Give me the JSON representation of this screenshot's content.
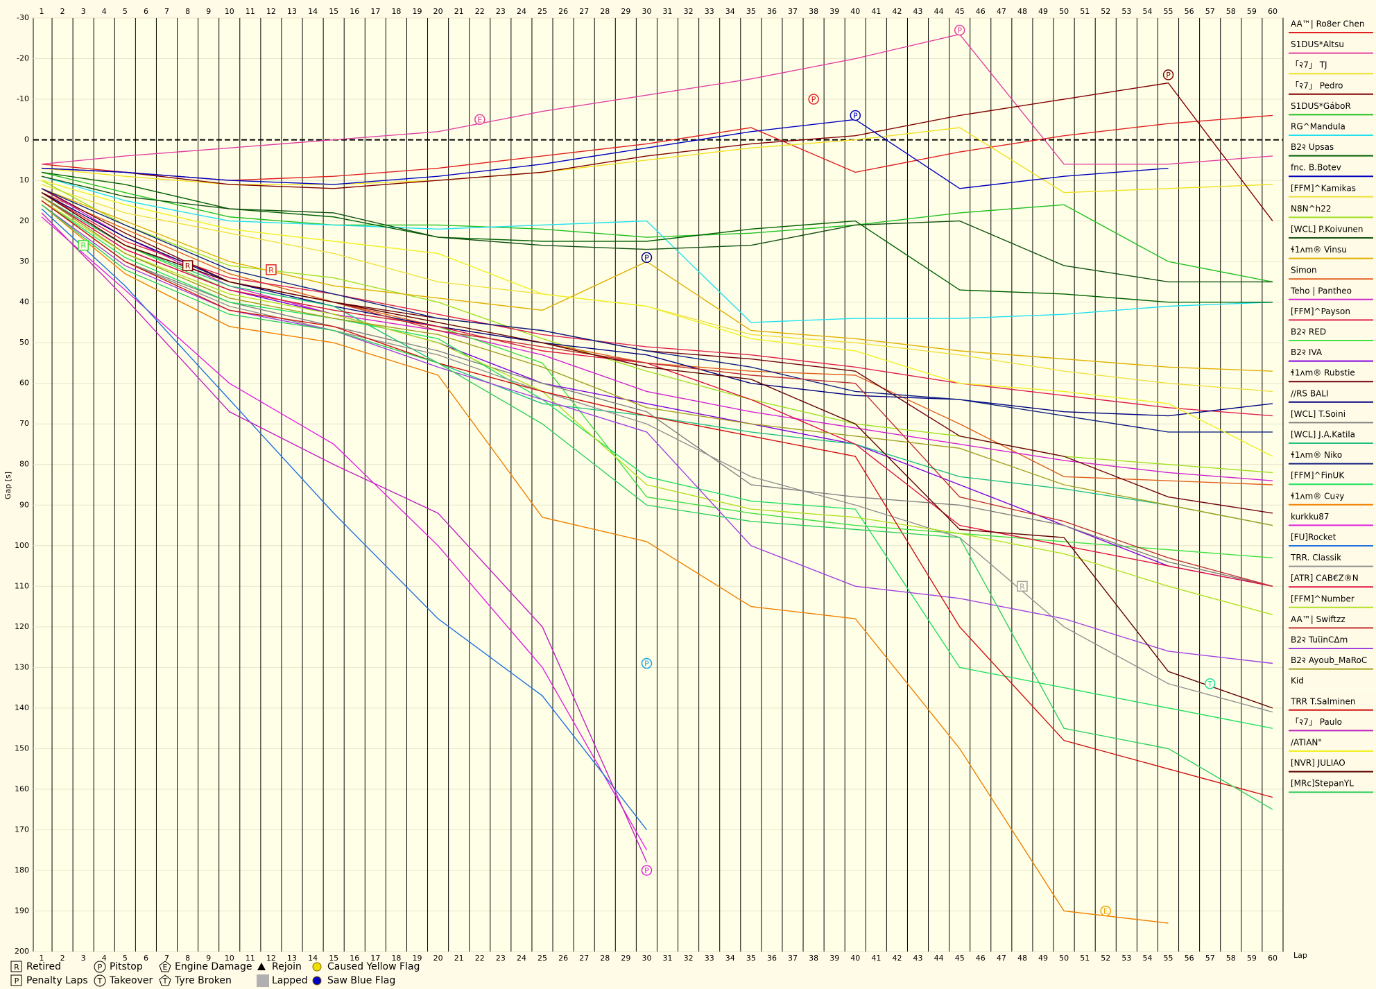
{
  "chart_data": {
    "type": "line",
    "x_label": "Lap",
    "y_label": "Gap [s]",
    "x": [
      1,
      5,
      10,
      15,
      20,
      25,
      30,
      35,
      40,
      45,
      50,
      55,
      60
    ],
    "xlim": [
      0.6,
      60.5
    ],
    "xticks": [
      1,
      2,
      3,
      4,
      5,
      6,
      7,
      8,
      9,
      10,
      11,
      12,
      13,
      14,
      15,
      16,
      17,
      18,
      19,
      20,
      21,
      22,
      23,
      24,
      25,
      26,
      27,
      28,
      29,
      30,
      31,
      32,
      33,
      34,
      35,
      36,
      37,
      38,
      39,
      40,
      41,
      42,
      43,
      44,
      45,
      46,
      47,
      48,
      49,
      50,
      51,
      52,
      53,
      54,
      55,
      56,
      57,
      58,
      59,
      60
    ],
    "ylim": [
      200,
      -30
    ],
    "yticks": [
      -30,
      -20,
      -10,
      0,
      10,
      20,
      30,
      40,
      50,
      60,
      70,
      80,
      90,
      100,
      110,
      120,
      130,
      140,
      150,
      160,
      170,
      180,
      190,
      200
    ],
    "grid": true,
    "series": [
      {
        "name": "AA™| Ro8er Chen",
        "color": "#e02020",
        "values": [
          6,
          8,
          10,
          9,
          7,
          4,
          1,
          -3,
          8,
          3,
          -1,
          -4,
          -6
        ]
      },
      {
        "name": "S1DUS*Altsu",
        "color": "#e040a0",
        "values": [
          6,
          4,
          2,
          0,
          -2,
          -7,
          -11,
          -15,
          -20,
          -26,
          6,
          6,
          4
        ]
      },
      {
        "name": "「२7」 TJ",
        "color": "#f0e020",
        "values": [
          7,
          9,
          11,
          11,
          10,
          8,
          5,
          2,
          0,
          -3,
          13,
          12,
          11
        ]
      },
      {
        "name": "「२7」 Pedro",
        "color": "#800000",
        "values": [
          7,
          8,
          11,
          12,
          10,
          8,
          4,
          1,
          -1,
          -6,
          -10,
          -14,
          20
        ]
      },
      {
        "name": "S1DUS*GáboR",
        "color": "#20c020",
        "values": [
          8,
          13,
          19,
          21,
          21,
          22,
          24,
          23,
          21,
          18,
          16,
          30,
          35
        ]
      },
      {
        "name": "RG^Mandula",
        "color": "#20e0f0",
        "values": [
          9,
          15,
          20,
          21,
          22,
          21,
          20,
          45,
          44,
          44,
          43,
          41,
          40
        ]
      },
      {
        "name": "B2२ Upsas",
        "color": "#006000",
        "values": [
          8,
          11,
          17,
          19,
          24,
          25,
          25,
          22,
          20,
          37,
          38,
          40,
          40
        ]
      },
      {
        "name": "fnc. B.Botev",
        "color": "#0000c0",
        "values": [
          7,
          8,
          10,
          11,
          9,
          6,
          2,
          -2,
          -5,
          12,
          9,
          7,
          null
        ]
      },
      {
        "name": "[FFM]^Kamikas",
        "color": "#f0e040",
        "values": [
          11,
          18,
          23,
          28,
          35,
          38,
          41,
          48,
          50,
          53,
          57,
          60,
          62
        ]
      },
      {
        "name": "N8N^h22",
        "color": "#a0e020",
        "values": [
          10,
          21,
          31,
          34,
          40,
          49,
          57,
          64,
          70,
          73,
          78,
          80,
          82
        ]
      },
      {
        "name": "[WCL] P.Koivunen",
        "color": "#105010",
        "values": [
          9,
          14,
          17,
          18,
          24,
          26,
          27,
          26,
          21,
          20,
          31,
          35,
          35
        ]
      },
      {
        "name": "ɬ1ʌm® Vinsu",
        "color": "#e0b000",
        "values": [
          12,
          20,
          30,
          36,
          39,
          42,
          30,
          47,
          49,
          52,
          54,
          56,
          57
        ]
      },
      {
        "name": "Simon",
        "color": "#e06020",
        "values": [
          13,
          22,
          33,
          40,
          46,
          50,
          55,
          57,
          58,
          70,
          83,
          84,
          85
        ]
      },
      {
        "name": "Teho | Pantheo",
        "color": "#d020d0",
        "values": [
          12,
          24,
          36,
          43,
          47,
          53,
          62,
          67,
          71,
          75,
          79,
          82,
          84
        ]
      },
      {
        "name": "[FFM]^Payson",
        "color": "#e02050",
        "values": [
          13,
          25,
          34,
          38,
          43,
          48,
          51,
          53,
          56,
          60,
          63,
          66,
          68
        ]
      },
      {
        "name": "B2२ RED",
        "color": "#40e040",
        "values": [
          14,
          26,
          37,
          42,
          46,
          55,
          88,
          92,
          95,
          97,
          99,
          101,
          103
        ]
      },
      {
        "name": "B2२ IVA",
        "color": "#8000e0",
        "values": [
          14,
          27,
          37,
          43,
          50,
          60,
          65,
          70,
          75,
          85,
          95,
          105,
          110
        ]
      },
      {
        "name": "ɬ1ʌm® Rubstie",
        "color": "#700010",
        "values": [
          12,
          23,
          35,
          40,
          44,
          47,
          52,
          54,
          57,
          73,
          78,
          88,
          92
        ]
      },
      {
        "name": "//RS BALI",
        "color": "#000080",
        "values": [
          13,
          24,
          35,
          41,
          46,
          50,
          53,
          60,
          63,
          64,
          67,
          68,
          65
        ]
      },
      {
        "name": "[WCL] T.Soini",
        "color": "#808080",
        "values": [
          15,
          30,
          40,
          46,
          52,
          60,
          67,
          85,
          88,
          90,
          95,
          104,
          110
        ]
      },
      {
        "name": "[WCL] J.A.Katila",
        "color": "#20c080",
        "values": [
          14,
          26,
          36,
          41,
          55,
          65,
          68,
          72,
          75,
          83,
          86,
          90,
          95
        ]
      },
      {
        "name": "ɬ1ʌm® Niko",
        "color": "#102080",
        "values": [
          12,
          21,
          32,
          38,
          44,
          47,
          52,
          56,
          62,
          64,
          68,
          72,
          72
        ]
      },
      {
        "name": "[FFM]^FinUK",
        "color": "#20e060",
        "values": [
          15,
          29,
          40,
          44,
          49,
          64,
          83,
          89,
          91,
          130,
          135,
          140,
          145
        ]
      },
      {
        "name": "ɬ1ʌm® Cu२y",
        "color": "#f08000",
        "values": [
          16,
          33,
          46,
          50,
          58,
          93,
          99,
          115,
          118,
          150,
          190,
          193,
          null
        ]
      },
      {
        "name": "kurkku87",
        "color": "#e020e0",
        "values": [
          19,
          37,
          60,
          75,
          100,
          130,
          175,
          null,
          null,
          null,
          null,
          null,
          null
        ]
      },
      {
        "name": "[FU]Rocket",
        "color": "#2070e0",
        "values": [
          17,
          36,
          64,
          92,
          118,
          137,
          170,
          null,
          null,
          null,
          null,
          null,
          null
        ]
      },
      {
        "name": "TRR. Classik",
        "color": "#909090",
        "values": [
          15,
          30,
          41,
          47,
          53,
          62,
          70,
          83,
          90,
          98,
          120,
          134,
          141
        ]
      },
      {
        "name": "[ATR] CAB€Z®N",
        "color": "#e01040",
        "values": [
          14,
          27,
          37,
          42,
          46,
          52,
          55,
          64,
          75,
          95,
          100,
          105,
          110
        ]
      },
      {
        "name": "[FFM]^Number",
        "color": "#b0e020",
        "values": [
          15,
          28,
          38,
          43,
          50,
          62,
          85,
          91,
          93,
          97,
          102,
          110,
          117
        ]
      },
      {
        "name": "AA™| Swiftzz",
        "color": "#c03030",
        "values": [
          13,
          26,
          35,
          40,
          47,
          51,
          55,
          58,
          60,
          88,
          94,
          103,
          110
        ]
      },
      {
        "name": "B2२ TuϊinCΔm",
        "color": "#a040e0",
        "values": [
          16,
          31,
          42,
          47,
          56,
          64,
          72,
          100,
          110,
          113,
          118,
          126,
          129
        ]
      },
      {
        "name": "B2२ Ayoub_MaRoC",
        "color": "#a0a020",
        "values": [
          14,
          28,
          39,
          44,
          48,
          56,
          66,
          70,
          73,
          76,
          85,
          90,
          95
        ]
      },
      {
        "name": "Kid",
        "color": "#fffff0",
        "values": [
          null,
          null,
          null,
          null,
          null,
          null,
          null,
          null,
          null,
          null,
          null,
          null,
          null
        ]
      },
      {
        "name": "TRR T.Salminen",
        "color": "#d01010",
        "values": [
          15,
          30,
          42,
          46,
          55,
          62,
          68,
          73,
          78,
          120,
          148,
          155,
          162
        ]
      },
      {
        "name": "「२7」 Paulo",
        "color": "#c020c0",
        "values": [
          18,
          39,
          67,
          80,
          92,
          120,
          178,
          null,
          null,
          null,
          null,
          null,
          null
        ]
      },
      {
        "name": "/ATIAN\"",
        "color": "#f0f020",
        "values": [
          10,
          16,
          22,
          25,
          28,
          38,
          41,
          49,
          52,
          60,
          62,
          65,
          78
        ]
      },
      {
        "name": "[NVR] JULIAO",
        "color": "#600000",
        "values": [
          13,
          26,
          35,
          40,
          45,
          50,
          56,
          59,
          70,
          96,
          98,
          131,
          140
        ]
      },
      {
        "name": "[MRc]StepanYL",
        "color": "#30d060",
        "values": [
          16,
          32,
          43,
          47,
          55,
          70,
          90,
          94,
          96,
          98,
          145,
          150,
          165
        ]
      }
    ],
    "events": [
      {
        "label": "P",
        "x": 45,
        "y": -27,
        "color": "#e040a0"
      },
      {
        "label": "P",
        "x": 55,
        "y": -16,
        "color": "#800000"
      },
      {
        "label": "P",
        "x": 38,
        "y": -10,
        "color": "#e02020"
      },
      {
        "label": "P",
        "x": 40,
        "y": -6,
        "color": "#0000c0"
      },
      {
        "label": "R",
        "x": 3,
        "y": 26,
        "color": "#40e040"
      },
      {
        "label": "R",
        "x": 8,
        "y": 31,
        "color": "#800000"
      },
      {
        "label": "R",
        "x": 12,
        "y": 32,
        "color": "#e02020"
      },
      {
        "label": "E",
        "x": 22,
        "y": -5,
        "color": "#e040a0"
      },
      {
        "label": "P",
        "x": 30,
        "y": 29,
        "color": "#000080"
      },
      {
        "label": "P",
        "x": 30,
        "y": 129,
        "color": "#20a0e0"
      },
      {
        "label": "P",
        "x": 30,
        "y": 180,
        "color": "#e020e0"
      },
      {
        "label": "R",
        "x": 48,
        "y": 110,
        "color": "#a0a0a0"
      },
      {
        "label": "E",
        "x": 52,
        "y": 190,
        "color": "#f0a000"
      },
      {
        "label": "T",
        "x": 57,
        "y": 134,
        "color": "#20e0a0"
      }
    ],
    "legend_items": [
      {
        "symbol": "R",
        "label": "Retired",
        "shape": "box",
        "color": "#000000"
      },
      {
        "symbol": "P",
        "label": "Pitstop",
        "shape": "circle",
        "color": "#000000"
      },
      {
        "symbol": "E",
        "label": "Engine Damage",
        "shape": "pentagon",
        "color": "#000000"
      },
      {
        "label": "Rejoin",
        "shape": "triangle",
        "color": "#000000"
      },
      {
        "label": "Caused Yellow Flag",
        "shape": "dot",
        "color": "#f0e000"
      },
      {
        "symbol": "P",
        "label": "Penalty Laps",
        "shape": "box",
        "color": "#000000"
      },
      {
        "symbol": "T",
        "label": "Takeover",
        "shape": "circle",
        "color": "#000000"
      },
      {
        "symbol": "T",
        "label": "Tyre Broken",
        "shape": "pentagon",
        "color": "#000000"
      },
      {
        "label": "Lapped",
        "shape": "square",
        "color": "#b0b0b0"
      },
      {
        "label": "Saw Blue Flag",
        "shape": "dot",
        "color": "#0000c0"
      }
    ]
  }
}
